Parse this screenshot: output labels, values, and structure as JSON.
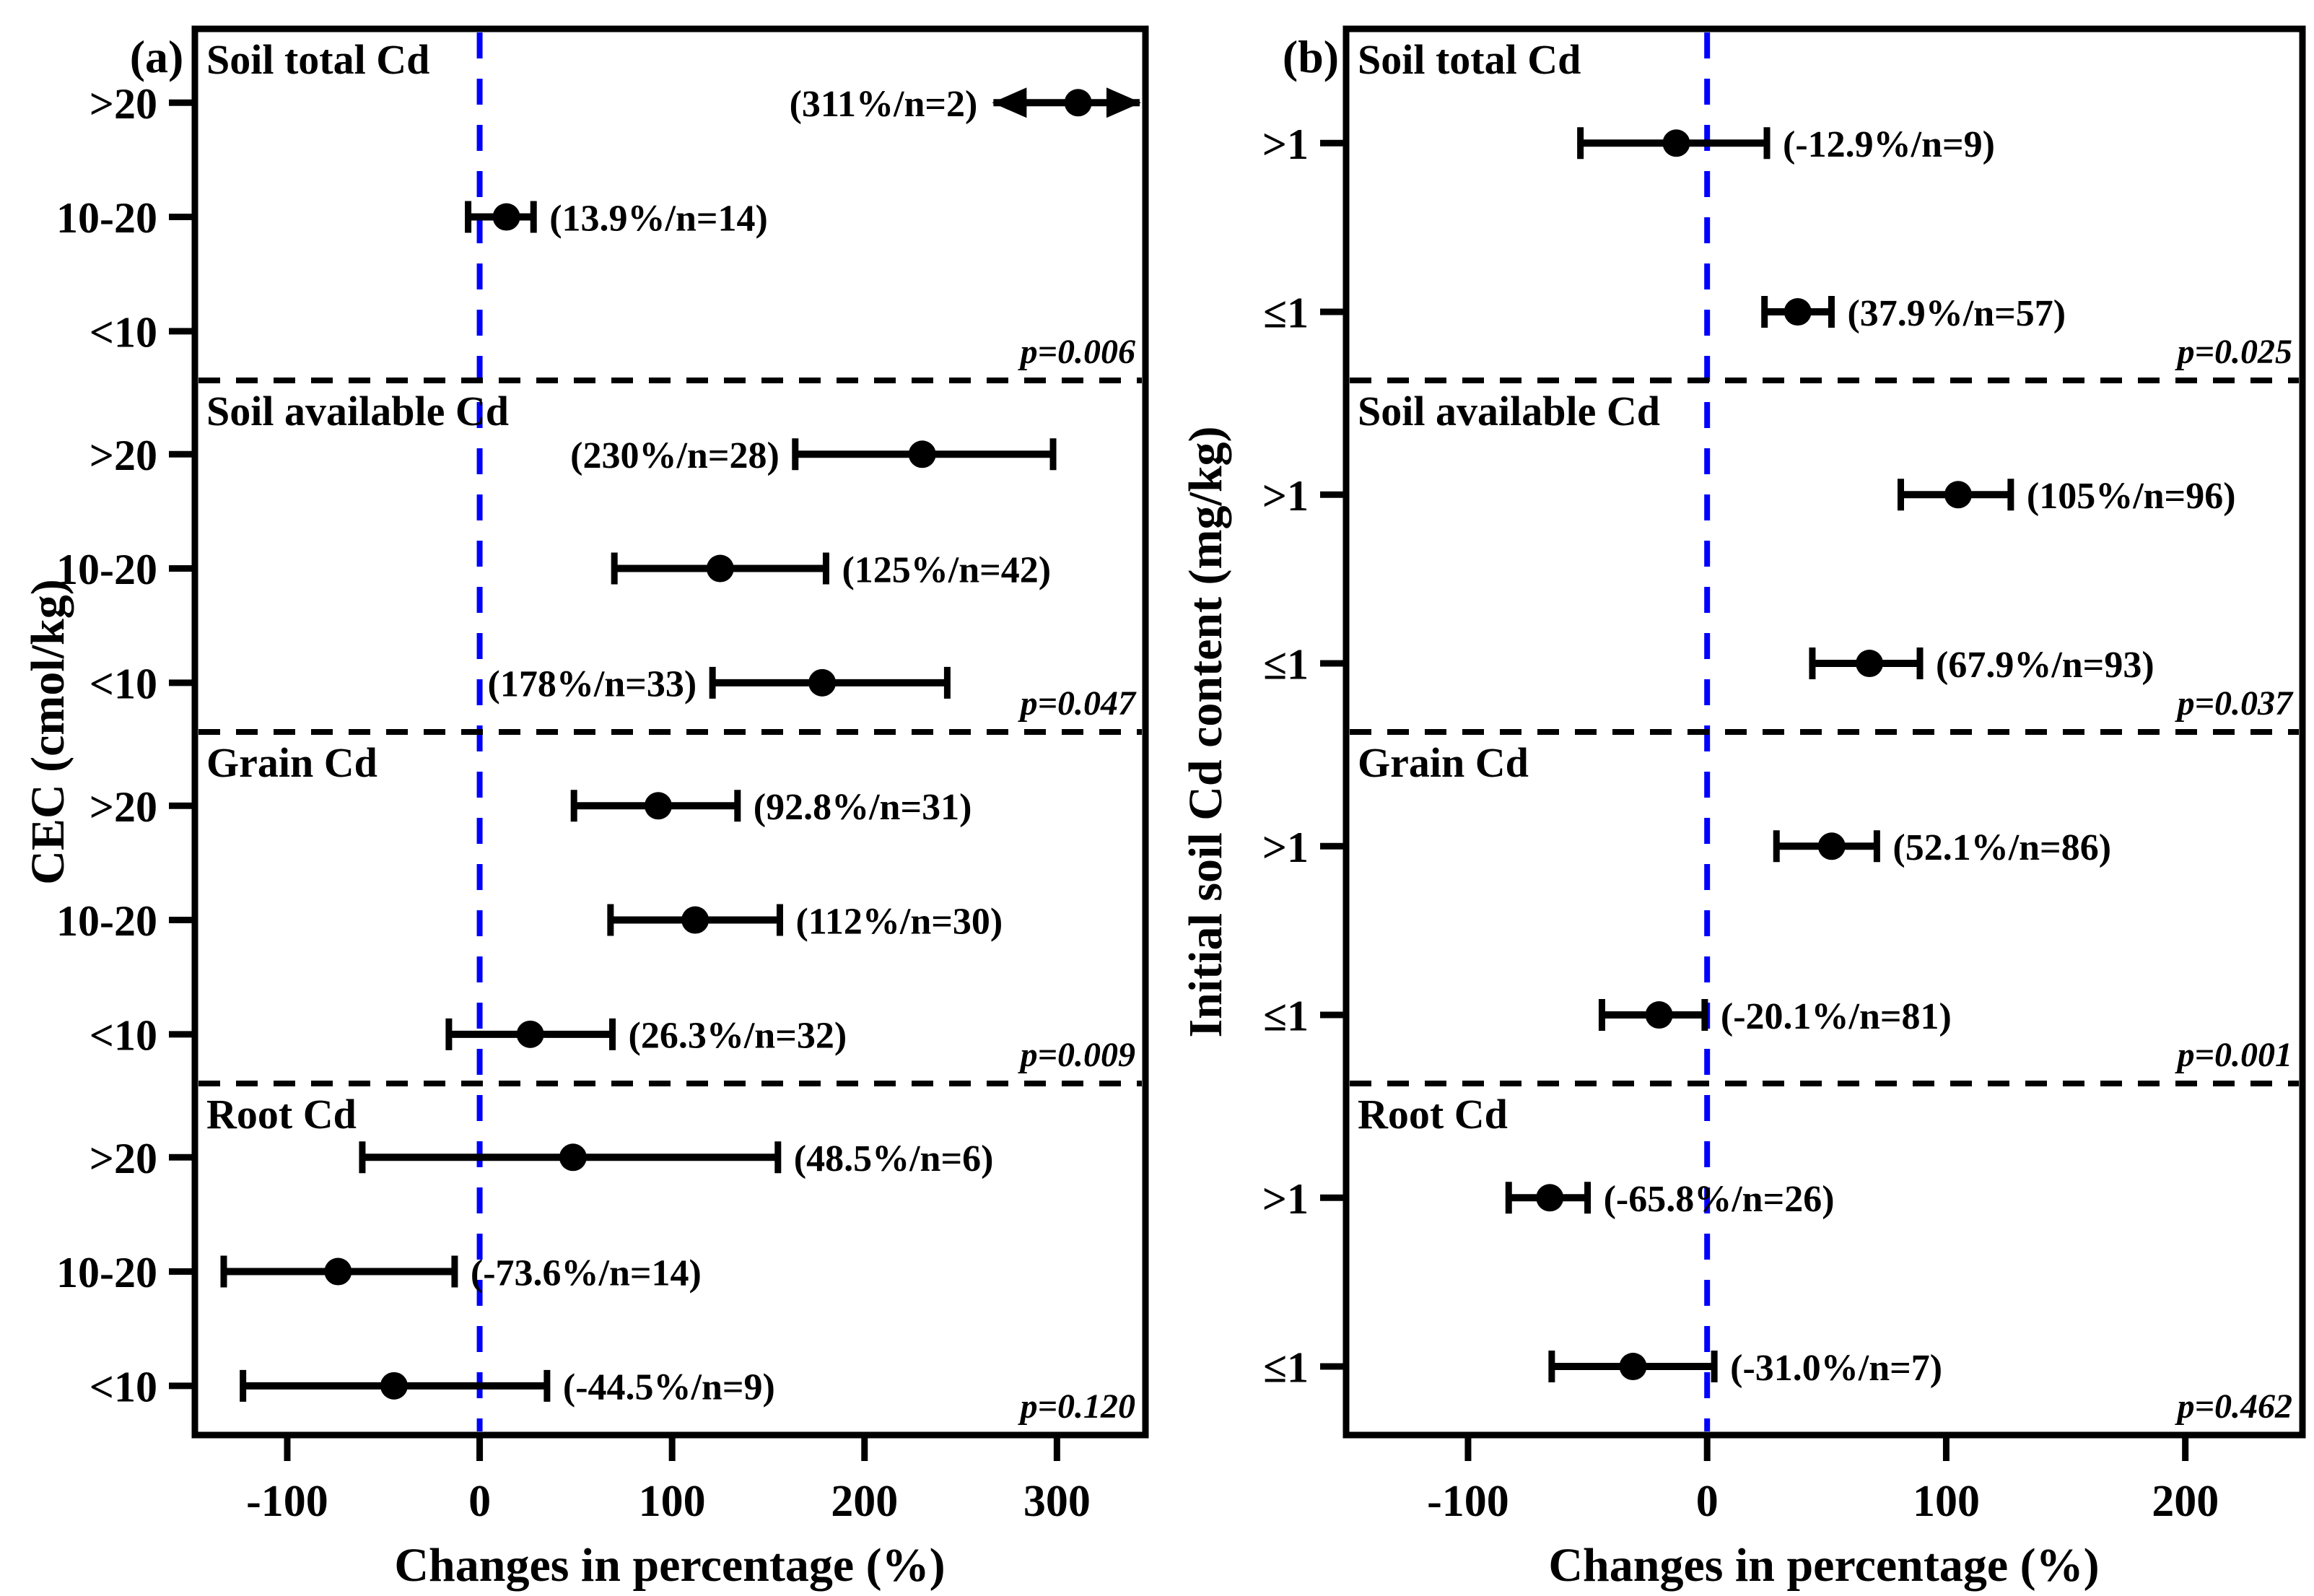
{
  "figure": {
    "background": "#ffffff",
    "ink_color": "#000000",
    "zero_line_color": "#0000ff"
  },
  "chart_data": [
    {
      "type": "forest-errorbar",
      "panel_label": "(a)",
      "y_axis_title": "CEC (cmol/kg)",
      "x_axis_title": "Changes in percentage (%)",
      "xlim": [
        -148,
        346
      ],
      "x_ticks": [
        -100,
        0,
        100,
        200,
        300
      ],
      "zero_line_x": 0,
      "grid": "off",
      "row_fractions": [
        0.21,
        0.535,
        0.86
      ],
      "sections": [
        {
          "name": "Soil total Cd",
          "p_label": "p=0.006",
          "rows": [
            {
              "category": ">20",
              "value": 311,
              "ci_low": 267,
              "ci_high": 343,
              "label": "(311%/n=2)",
              "label_side": "left",
              "clipped": true
            },
            {
              "category": "10-20",
              "value": 13.9,
              "ci_low": -6,
              "ci_high": 28,
              "label": "(13.9%/n=14)",
              "label_side": "right",
              "clipped": false
            },
            {
              "category": "<10",
              "value": null,
              "ci_low": null,
              "ci_high": null,
              "label": "",
              "label_side": "right",
              "clipped": false
            }
          ]
        },
        {
          "name": "Soil available Cd",
          "p_label": "p=0.047",
          "rows": [
            {
              "category": ">20",
              "value": 230,
              "ci_low": 164,
              "ci_high": 298,
              "label": "(230%/n=28)",
              "label_side": "left",
              "clipped": false
            },
            {
              "category": "10-20",
              "value": 125,
              "ci_low": 70,
              "ci_high": 180,
              "label": "(125%/n=42)",
              "label_side": "right",
              "clipped": false
            },
            {
              "category": "<10",
              "value": 178,
              "ci_low": 121,
              "ci_high": 243,
              "label": "(178%/n=33)",
              "label_side": "left",
              "clipped": false
            }
          ]
        },
        {
          "name": "Grain Cd",
          "p_label": "p=0.009",
          "rows": [
            {
              "category": ">20",
              "value": 92.8,
              "ci_low": 49,
              "ci_high": 134,
              "label": "(92.8%/n=31)",
              "label_side": "right",
              "clipped": false
            },
            {
              "category": "10-20",
              "value": 112,
              "ci_low": 68,
              "ci_high": 156,
              "label": "(112%/n=30)",
              "label_side": "right",
              "clipped": false
            },
            {
              "category": "<10",
              "value": 26.3,
              "ci_low": -16,
              "ci_high": 69,
              "label": "(26.3%/n=32)",
              "label_side": "right",
              "clipped": false
            }
          ]
        },
        {
          "name": "Root Cd",
          "p_label": "p=0.120",
          "rows": [
            {
              "category": ">20",
              "value": 48.5,
              "ci_low": -61,
              "ci_high": 155,
              "label": "(48.5%/n=6)",
              "label_side": "right",
              "clipped": false
            },
            {
              "category": "10-20",
              "value": -73.6,
              "ci_low": -133,
              "ci_high": -13,
              "label": "(-73.6%/n=14)",
              "label_side": "right",
              "clipped": false
            },
            {
              "category": "<10",
              "value": -44.5,
              "ci_low": -123,
              "ci_high": 35,
              "label": "(-44.5%/n=9)",
              "label_side": "right",
              "clipped": false
            }
          ]
        }
      ]
    },
    {
      "type": "forest-errorbar",
      "panel_label": "(b)",
      "y_axis_title": "Initial soil Cd content (mg/kg)",
      "x_axis_title": "Changes in percentage (%)",
      "xlim": [
        -151,
        249
      ],
      "x_ticks": [
        -100,
        0,
        100,
        200
      ],
      "zero_line_x": 0,
      "grid": "off",
      "row_fractions": [
        0.325,
        0.805
      ],
      "sections": [
        {
          "name": "Soil total Cd",
          "p_label": "p=0.025",
          "rows": [
            {
              "category": ">1",
              "value": -12.9,
              "ci_low": -53,
              "ci_high": 25,
              "label": "(-12.9%/n=9)",
              "label_side": "right",
              "clipped": false
            },
            {
              "category": "≤1",
              "value": 37.9,
              "ci_low": 24,
              "ci_high": 52,
              "label": "(37.9%/n=57)",
              "label_side": "right",
              "clipped": false
            }
          ]
        },
        {
          "name": "Soil available Cd",
          "p_label": "p=0.037",
          "rows": [
            {
              "category": ">1",
              "value": 105,
              "ci_low": 81,
              "ci_high": 127,
              "label": "(105%/n=96)",
              "label_side": "right",
              "clipped": false
            },
            {
              "category": "≤1",
              "value": 67.9,
              "ci_low": 44,
              "ci_high": 89,
              "label": "(67.9%/n=93)",
              "label_side": "right",
              "clipped": false
            }
          ]
        },
        {
          "name": "Grain Cd",
          "p_label": "p=0.001",
          "rows": [
            {
              "category": ">1",
              "value": 52.1,
              "ci_low": 29,
              "ci_high": 71,
              "label": "(52.1%/n=86)",
              "label_side": "right",
              "clipped": false
            },
            {
              "category": "≤1",
              "value": -20.1,
              "ci_low": -44,
              "ci_high": -1,
              "label": "(-20.1%/n=81)",
              "label_side": "right",
              "clipped": false
            }
          ]
        },
        {
          "name": "Root Cd",
          "p_label": "p=0.462",
          "rows": [
            {
              "category": ">1",
              "value": -65.8,
              "ci_low": -83,
              "ci_high": -50,
              "label": "(-65.8%/n=26)",
              "label_side": "right",
              "clipped": false
            },
            {
              "category": "≤1",
              "value": -31.0,
              "ci_low": -65,
              "ci_high": 3,
              "label": "(-31.0%/n=7)",
              "label_side": "right",
              "clipped": false
            }
          ]
        }
      ]
    }
  ]
}
